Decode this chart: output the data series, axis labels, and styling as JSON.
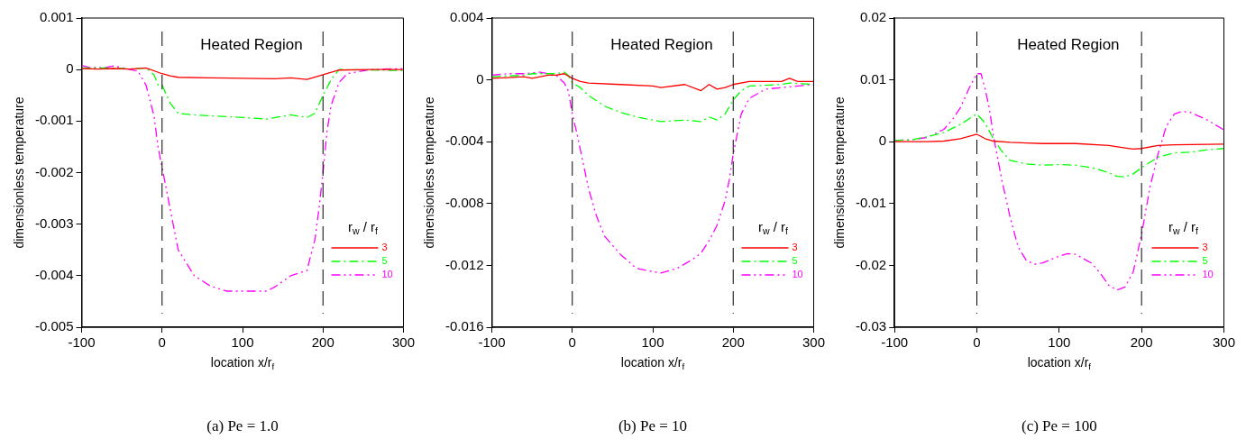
{
  "chart_data": [
    {
      "type": "line",
      "title": "(a) Pe = 1.0",
      "xlabel": "location x/r$_{f}$",
      "ylabel": "dimensionless temperature",
      "legend_title": "r$_{w}$ / r$_{f}$",
      "legend": "bottom right",
      "annotations": [
        "Heated Region"
      ],
      "ref_lines": [
        {
          "axis": "x",
          "value": 0,
          "line_style": "dashed",
          "color": "#000000"
        },
        {
          "axis": "x",
          "value": 200,
          "line_style": "dashed",
          "color": "#000000"
        }
      ],
      "xlim": [
        -100,
        300
      ],
      "xticks": [
        -100,
        0,
        100,
        200,
        300
      ],
      "ylim": [
        -0.005,
        0.001
      ],
      "yticks": [
        -0.005,
        -0.004,
        -0.003,
        -0.002,
        -0.001,
        0,
        0.001
      ],
      "series": [
        {
          "name": "3",
          "color": "#ff0000",
          "line_style": "solid",
          "x": [
            -100,
            -80,
            -60,
            -40,
            -20,
            0,
            10,
            20,
            60,
            100,
            140,
            160,
            180,
            200,
            220,
            260,
            300
          ],
          "values": [
            2e-05,
            1e-05,
            2e-05,
            1e-05,
            3e-05,
            -8e-05,
            -0.00012,
            -0.00015,
            -0.00016,
            -0.00017,
            -0.00018,
            -0.00016,
            -0.00019,
            -0.0001,
            -1e-05,
            0,
            0
          ]
        },
        {
          "name": "5",
          "color": "#00ff00",
          "line_style": "dashed",
          "x": [
            -100,
            -60,
            -40,
            -20,
            -10,
            -5,
            0,
            10,
            20,
            40,
            100,
            130,
            160,
            180,
            190,
            200,
            210,
            220,
            300
          ],
          "values": [
            3e-05,
            3e-05,
            1e-05,
            3e-05,
            -0.0001,
            -0.0003,
            -0.0003,
            -0.00065,
            -0.00085,
            -0.00088,
            -0.00093,
            -0.00096,
            -0.00088,
            -0.00093,
            -0.00085,
            -0.0005,
            -0.0002,
            0,
            -2e-05
          ]
        },
        {
          "name": "10",
          "color": "#ff00ff",
          "line_style": "dotted",
          "x": [
            -100,
            -90,
            -70,
            -60,
            -40,
            -30,
            -20,
            -10,
            -5,
            0,
            5,
            10,
            20,
            40,
            60,
            80,
            100,
            130,
            140,
            160,
            180,
            190,
            195,
            200,
            205,
            210,
            220,
            230,
            240,
            260,
            300
          ],
          "values": [
            8e-05,
            4e-05,
            4e-05,
            7e-05,
            0,
            -3e-05,
            -0.0003,
            -0.0009,
            -0.0015,
            -0.0019,
            -0.0023,
            -0.0027,
            -0.0035,
            -0.004,
            -0.0042,
            -0.0043,
            -0.0043,
            -0.0043,
            -0.00422,
            -0.004,
            -0.0039,
            -0.0033,
            -0.0027,
            -0.002,
            -0.0012,
            -0.0007,
            -0.00025,
            -8e-05,
            -5e-05,
            0,
            2e-05
          ]
        }
      ]
    },
    {
      "type": "line",
      "title": "(b) Pe = 10",
      "xlabel": "location x/r$_{f}$",
      "ylabel": "dimensionless temperature",
      "legend_title": "r$_{w}$ / r$_{f}$",
      "legend": "bottom right",
      "annotations": [
        "Heated Region"
      ],
      "ref_lines": [
        {
          "axis": "x",
          "value": 0,
          "line_style": "dashed",
          "color": "#000000"
        },
        {
          "axis": "x",
          "value": 200,
          "line_style": "dashed",
          "color": "#000000"
        }
      ],
      "xlim": [
        -100,
        300
      ],
      "xticks": [
        -100,
        0,
        100,
        200,
        300
      ],
      "ylim": [
        -0.016,
        0.004
      ],
      "yticks": [
        -0.016,
        -0.012,
        -0.008,
        -0.004,
        0,
        0.004
      ],
      "series": [
        {
          "name": "3",
          "color": "#ff0000",
          "line_style": "solid",
          "x": [
            -100,
            -80,
            -60,
            -50,
            -30,
            -20,
            -10,
            0,
            10,
            20,
            60,
            100,
            110,
            140,
            160,
            170,
            180,
            190,
            200,
            220,
            260,
            270,
            280,
            300
          ],
          "values": [
            0.0001,
            0.00015,
            0.0002,
            0.0001,
            0.0003,
            0.0003,
            0.0004,
            0.0001,
            -0.0001,
            -0.0002,
            -0.0003,
            -0.0004,
            -0.0005,
            -0.0003,
            -0.0007,
            -0.0003,
            -0.0006,
            -0.0005,
            -0.0003,
            -0.0001,
            -0.0001,
            0.0001,
            -0.0001,
            -0.0001
          ]
        },
        {
          "name": "5",
          "color": "#00ff00",
          "line_style": "dashed",
          "x": [
            -100,
            -60,
            -50,
            -20,
            -10,
            -5,
            0,
            10,
            20,
            40,
            60,
            80,
            100,
            110,
            140,
            160,
            170,
            180,
            190,
            200,
            210,
            220,
            260,
            270,
            300
          ],
          "values": [
            0.0002,
            0.0003,
            0.0004,
            0.0004,
            0.0005,
            0.0003,
            -0.0002,
            -0.0005,
            -0.001,
            -0.0017,
            -0.0021,
            -0.0024,
            -0.0026,
            -0.0027,
            -0.0026,
            -0.0027,
            -0.0024,
            -0.0026,
            -0.0022,
            -0.0013,
            -0.0007,
            -0.0004,
            -0.0003,
            -0.0002,
            -0.0003
          ]
        },
        {
          "name": "10",
          "color": "#ff00ff",
          "line_style": "dotted",
          "x": [
            -100,
            -80,
            -60,
            -40,
            -20,
            -10,
            -5,
            0,
            5,
            10,
            20,
            30,
            40,
            60,
            80,
            100,
            110,
            130,
            150,
            160,
            170,
            180,
            190,
            195,
            200,
            205,
            210,
            220,
            240,
            260,
            280,
            300
          ],
          "values": [
            0.0003,
            0.0004,
            0.0004,
            0.0005,
            0.0003,
            -0.0002,
            -0.0007,
            -0.0022,
            -0.0033,
            -0.0045,
            -0.007,
            -0.0088,
            -0.0101,
            -0.0113,
            -0.0122,
            -0.0124,
            -0.0125,
            -0.0122,
            -0.0116,
            -0.0112,
            -0.0104,
            -0.0094,
            -0.0078,
            -0.0065,
            -0.0048,
            -0.0035,
            -0.0022,
            -0.0012,
            -0.0006,
            -0.0005,
            -0.0004,
            -0.0003
          ]
        }
      ]
    },
    {
      "type": "line",
      "title": "(c) Pe = 100",
      "xlabel": "location x/r$_{f}$",
      "ylabel": "dimensionless temperature",
      "legend_title": "r$_{w}$ / r$_{f}$",
      "legend": "bottom right",
      "annotations": [
        "Heated Region"
      ],
      "ref_lines": [
        {
          "axis": "x",
          "value": 0,
          "line_style": "dashed",
          "color": "#000000"
        },
        {
          "axis": "x",
          "value": 200,
          "line_style": "dashed",
          "color": "#000000"
        }
      ],
      "xlim": [
        -100,
        300
      ],
      "xticks": [
        -100,
        0,
        100,
        200,
        300
      ],
      "ylim": [
        -0.03,
        0.02
      ],
      "yticks": [
        -0.03,
        -0.02,
        -0.01,
        0,
        0.01,
        0.02
      ],
      "series": [
        {
          "name": "3",
          "color": "#ff0000",
          "line_style": "solid",
          "x": [
            -100,
            -60,
            -40,
            -20,
            0,
            10,
            20,
            40,
            60,
            80,
            120,
            160,
            180,
            190,
            200,
            220,
            240,
            300
          ],
          "values": [
            0,
            0,
            0.0001,
            0.0005,
            0.0012,
            0.0005,
            0.0001,
            -0.0001,
            -0.0002,
            -0.0003,
            -0.0003,
            -0.0006,
            -0.001,
            -0.0012,
            -0.0011,
            -0.0006,
            -0.0005,
            -0.0004
          ]
        },
        {
          "name": "5",
          "color": "#00ff00",
          "line_style": "dashed",
          "x": [
            -100,
            -80,
            -60,
            -40,
            -20,
            0,
            10,
            20,
            30,
            40,
            60,
            80,
            100,
            120,
            140,
            160,
            170,
            180,
            190,
            200,
            220,
            240,
            260,
            280,
            300
          ],
          "values": [
            0.0002,
            0.0003,
            0.0008,
            0.0015,
            0.0028,
            0.0045,
            0.003,
            0.0005,
            -0.0015,
            -0.003,
            -0.0036,
            -0.0038,
            -0.0037,
            -0.0038,
            -0.0042,
            -0.005,
            -0.0056,
            -0.0057,
            -0.0052,
            -0.0042,
            -0.0025,
            -0.0018,
            -0.0017,
            -0.0013,
            -0.0011
          ]
        },
        {
          "name": "10",
          "color": "#ff00ff",
          "line_style": "dotted",
          "x": [
            -100,
            -80,
            -60,
            -40,
            -30,
            -20,
            -10,
            0,
            5,
            10,
            15,
            20,
            30,
            40,
            50,
            60,
            70,
            80,
            100,
            110,
            120,
            140,
            150,
            160,
            170,
            180,
            190,
            200,
            210,
            220,
            230,
            240,
            250,
            260,
            280,
            300
          ],
          "values": [
            0.0002,
            0.0003,
            0.0007,
            0.002,
            0.0035,
            0.0055,
            0.0085,
            0.011,
            0.011,
            0.0085,
            0.0055,
            0.001,
            -0.006,
            -0.012,
            -0.017,
            -0.0192,
            -0.0198,
            -0.0196,
            -0.0185,
            -0.0181,
            -0.0182,
            -0.0197,
            -0.0213,
            -0.0232,
            -0.024,
            -0.0235,
            -0.021,
            -0.015,
            -0.0075,
            -0.002,
            0.0025,
            0.0045,
            0.0049,
            0.0047,
            0.0035,
            0.0019
          ]
        }
      ]
    }
  ]
}
